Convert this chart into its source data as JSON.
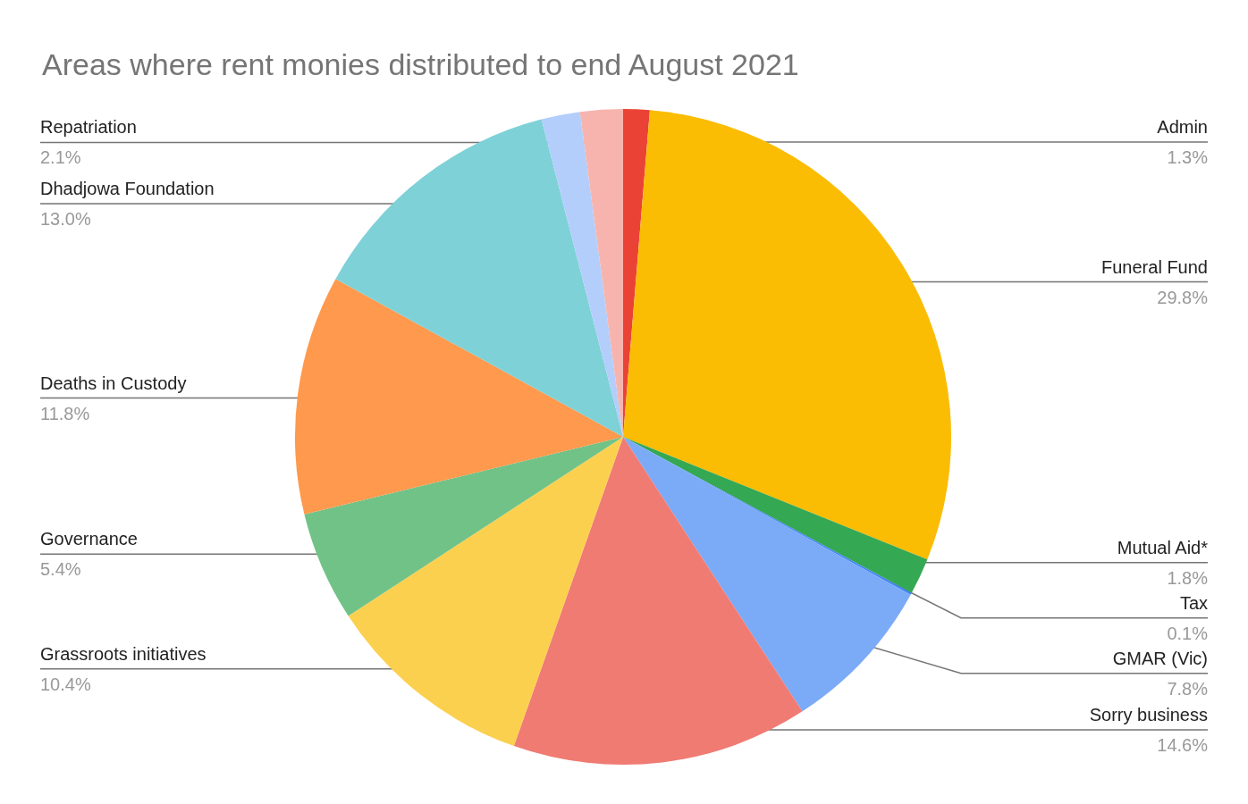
{
  "chart_data": {
    "type": "pie",
    "title": "Areas where rent monies distributed to end August 2021",
    "categories": [
      "Admin",
      "Funeral Fund",
      "Mutual Aid*",
      "Tax",
      "GMAR (Vic)",
      "Sorry business",
      "Grassroots initiatives",
      "Governance",
      "Deaths in Custody",
      "Dhadjowa Foundation",
      null,
      "Repatriation"
    ],
    "values": [
      1.3,
      29.8,
      1.8,
      0.1,
      7.8,
      14.6,
      10.4,
      5.4,
      11.8,
      13.0,
      1.9,
      2.1
    ],
    "value_labels": [
      "1.3%",
      "29.8%",
      "1.8%",
      "0.1%",
      "7.8%",
      "14.6%",
      "10.4%",
      "5.4%",
      "11.8%",
      "13.0%",
      null,
      "2.1%"
    ],
    "colors": [
      "#ea4335",
      "#fbbc04",
      "#34a853",
      "#4285f4",
      "#7baaf7",
      "#f07b72",
      "#fcd04f",
      "#71c287",
      "#ff994d",
      "#7ed1d7",
      "#b3cefb",
      "#f7b4ae"
    ],
    "legend": false
  }
}
